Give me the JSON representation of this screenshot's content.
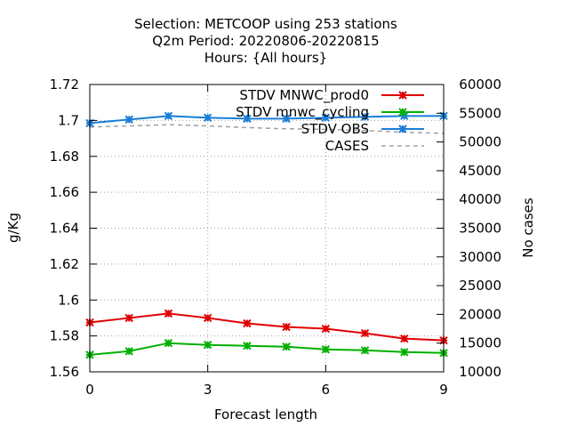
{
  "chart_data": {
    "type": "line",
    "title_lines": [
      "Selection: METCOOP using   253 stations",
      "Q2m   Period: 20220806-20220815",
      "Hours: {All hours}"
    ],
    "xlabel": "Forecast length",
    "ylabel": "g/Kg",
    "y2label": "No cases",
    "x": [
      0,
      1,
      2,
      3,
      4,
      5,
      6,
      7,
      8,
      9
    ],
    "xlim": [
      0,
      9
    ],
    "xticks": [
      0,
      3,
      6,
      9
    ],
    "ylim": [
      1.56,
      1.72
    ],
    "yticks": [
      "1.56",
      "1.58",
      "1.6",
      "1.62",
      "1.64",
      "1.66",
      "1.68",
      "1.7",
      "1.72"
    ],
    "y2lim": [
      10000,
      60000
    ],
    "y2ticks": [
      "10000",
      "15000",
      "20000",
      "25000",
      "30000",
      "35000",
      "40000",
      "45000",
      "50000",
      "55000",
      "60000"
    ],
    "grid": true,
    "legend_position": "top-right",
    "series": [
      {
        "name": "STDV MNWC_prod0",
        "axis": "y",
        "color": "#e00000",
        "marker": "star",
        "values": [
          1.5875,
          1.59,
          1.5925,
          1.59,
          1.587,
          1.585,
          1.584,
          1.5815,
          1.5785,
          1.5775
        ]
      },
      {
        "name": "STDV mnwc_cycling",
        "axis": "y",
        "color": "#00b000",
        "marker": "star",
        "values": [
          1.5695,
          1.5715,
          1.576,
          1.575,
          1.5745,
          1.574,
          1.5725,
          1.572,
          1.571,
          1.5705
        ]
      },
      {
        "name": "STDV OBS",
        "axis": "y",
        "color": "#1a7ed8",
        "marker": "star",
        "values": [
          1.6985,
          1.7005,
          1.7025,
          1.7015,
          1.701,
          1.701,
          1.7015,
          1.702,
          1.7025,
          1.7025
        ]
      },
      {
        "name": "CASES",
        "axis": "y2",
        "color": "#a0a0a0",
        "marker": "none",
        "dashed": true,
        "values": [
          52600,
          52800,
          53000,
          52800,
          52500,
          52300,
          52200,
          52000,
          51700,
          51500
        ]
      }
    ]
  }
}
